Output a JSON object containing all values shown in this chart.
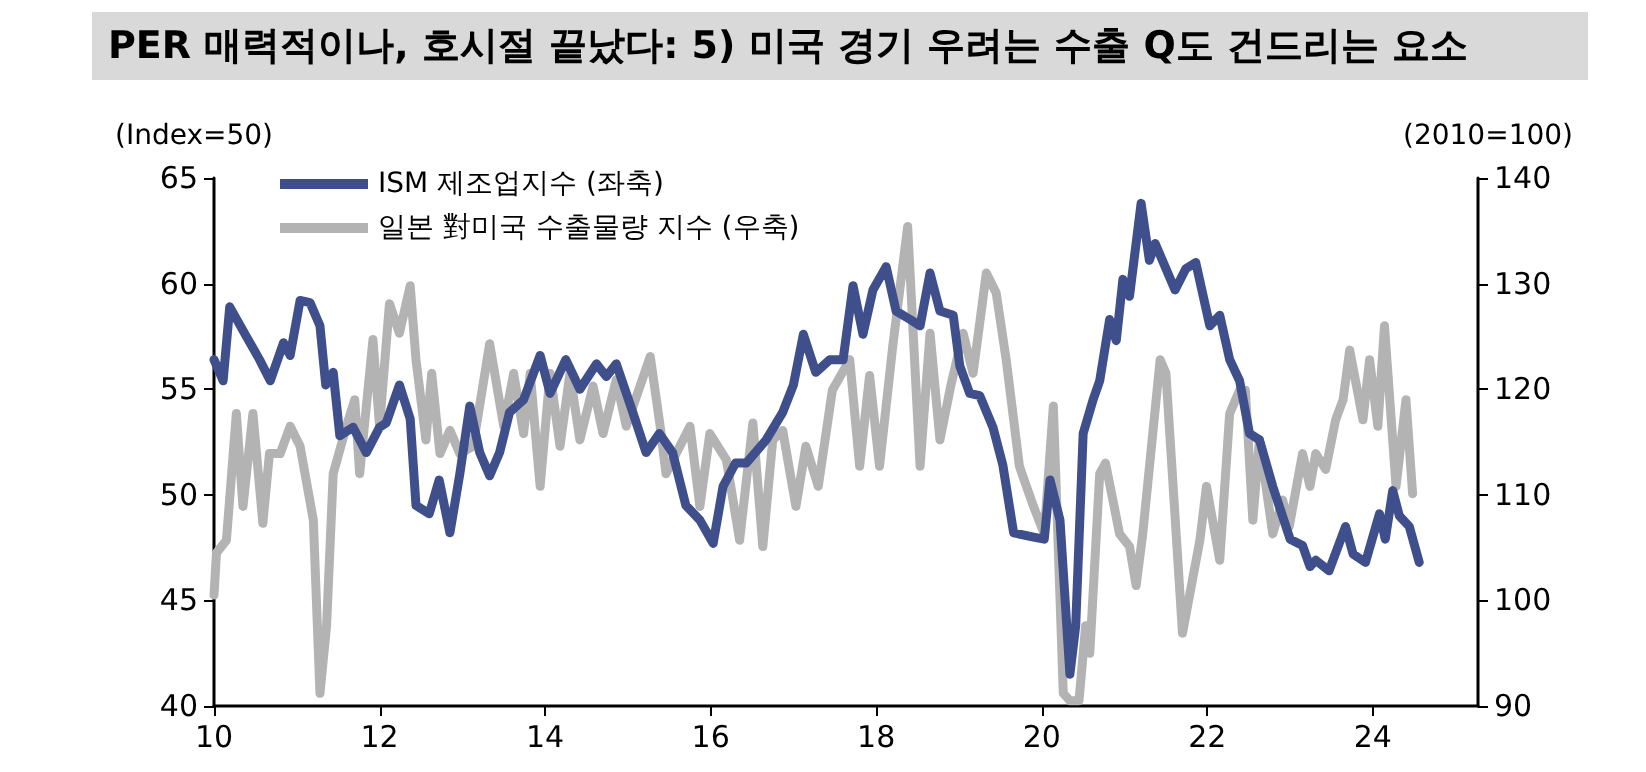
{
  "chart_data": {
    "type": "line",
    "title": "PER 매력적이나, 호시절 끝났다: 5) 미국 경기 우려는 수출 Q도 건드리는 요소",
    "ylabel": "(Index=50)",
    "y2label": "(2010=100)",
    "xlim": [
      10,
      25.27
    ],
    "xticks": [
      10,
      12,
      14,
      16,
      18,
      20,
      22,
      24
    ],
    "ylim": [
      40,
      65
    ],
    "yticks": [
      40,
      45,
      50,
      55,
      60,
      65
    ],
    "y2lim": [
      90,
      140
    ],
    "y2ticks": [
      90,
      100,
      110,
      120,
      130,
      140
    ],
    "grid": false,
    "legend": "top left",
    "marker": "none",
    "line_style": "solid",
    "series": [
      {
        "name": "ISM 제조업지수 (좌축)",
        "color": "#3f4f8c",
        "x": [
          10.0,
          10.11,
          10.19,
          10.39,
          10.55,
          10.68,
          10.84,
          10.92,
          11.04,
          11.16,
          11.28,
          11.35,
          11.44,
          11.52,
          11.68,
          11.84,
          12.0,
          12.08,
          12.24,
          12.37,
          12.44,
          12.6,
          12.72,
          12.85,
          12.97,
          13.09,
          13.21,
          13.33,
          13.45,
          13.57,
          13.74,
          13.94,
          14.06,
          14.25,
          14.42,
          14.62,
          14.74,
          14.86,
          15.06,
          15.22,
          15.38,
          15.54,
          15.7,
          15.87,
          16.03,
          16.15,
          16.3,
          16.43,
          16.67,
          16.87,
          17.0,
          17.12,
          17.27,
          17.44,
          17.6,
          17.72,
          17.84,
          17.96,
          18.12,
          18.24,
          18.41,
          18.53,
          18.65,
          18.77,
          18.93,
          19.01,
          19.13,
          19.25,
          19.41,
          19.53,
          19.66,
          19.9,
          20.03,
          20.1,
          20.22,
          20.34,
          20.41,
          20.5,
          20.62,
          20.7,
          20.82,
          20.9,
          20.98,
          21.06,
          21.2,
          21.3,
          21.37,
          21.61,
          21.74,
          21.86,
          22.03,
          22.15,
          22.27,
          22.39,
          22.51,
          22.63,
          22.79,
          23.0,
          23.15,
          23.24,
          23.31,
          23.47,
          23.67,
          23.76,
          23.91,
          24.08,
          24.15,
          24.24,
          24.32,
          24.44,
          24.56
        ],
        "values": [
          56.4,
          55.4,
          58.9,
          57.5,
          56.4,
          55.4,
          57.2,
          56.6,
          59.2,
          59.1,
          58.0,
          55.2,
          55.8,
          52.8,
          53.2,
          52.0,
          53.2,
          53.4,
          55.2,
          53.6,
          49.5,
          49.1,
          50.7,
          48.2,
          51.0,
          54.2,
          52.0,
          50.9,
          52.0,
          53.9,
          54.5,
          56.6,
          54.8,
          56.4,
          55.0,
          56.2,
          55.6,
          56.2,
          53.9,
          52.0,
          52.9,
          52.0,
          49.5,
          48.8,
          47.7,
          50.4,
          51.5,
          51.5,
          52.6,
          53.9,
          55.2,
          57.6,
          55.8,
          56.4,
          56.4,
          59.9,
          57.6,
          59.7,
          60.8,
          58.7,
          58.3,
          58.0,
          60.5,
          58.7,
          58.5,
          56.1,
          54.8,
          54.7,
          53.2,
          51.4,
          48.2,
          48.0,
          47.9,
          50.7,
          48.8,
          41.5,
          43.8,
          52.9,
          54.5,
          55.4,
          58.3,
          57.3,
          60.2,
          59.4,
          63.8,
          61.1,
          61.9,
          59.7,
          60.7,
          61.0,
          58.0,
          58.5,
          56.4,
          55.4,
          52.9,
          52.6,
          50.4,
          47.9,
          47.6,
          46.6,
          46.9,
          46.4,
          48.5,
          47.2,
          46.8,
          49.1,
          47.9,
          50.2,
          49.0,
          48.5,
          46.8
        ]
      },
      {
        "name": "일본 對미국 수출물량 지수 (우축)",
        "color": "#b3b3b3",
        "axis": "y2",
        "x": [
          10.0,
          10.03,
          10.15,
          10.27,
          10.35,
          10.47,
          10.59,
          10.67,
          10.8,
          10.92,
          11.04,
          11.2,
          11.28,
          11.36,
          11.44,
          11.6,
          11.7,
          11.76,
          11.92,
          12.0,
          12.12,
          12.24,
          12.37,
          12.44,
          12.56,
          12.63,
          12.73,
          12.85,
          12.97,
          13.13,
          13.33,
          13.5,
          13.62,
          13.74,
          13.82,
          13.94,
          14.06,
          14.18,
          14.3,
          14.42,
          14.58,
          14.7,
          14.86,
          14.98,
          15.27,
          15.39,
          15.46,
          15.75,
          15.87,
          15.99,
          16.19,
          16.35,
          16.51,
          16.63,
          16.75,
          16.87,
          17.03,
          17.15,
          17.3,
          17.47,
          17.68,
          17.8,
          17.92,
          18.04,
          18.2,
          18.38,
          18.53,
          18.65,
          18.77,
          18.9,
          19.05,
          19.17,
          19.33,
          19.45,
          19.57,
          19.73,
          19.9,
          20.03,
          20.14,
          20.26,
          20.34,
          20.45,
          20.53,
          20.58,
          20.7,
          20.77,
          20.94,
          21.06,
          21.14,
          21.22,
          21.43,
          21.5,
          21.7,
          21.91,
          21.99,
          22.15,
          22.27,
          22.39,
          22.46,
          22.55,
          22.63,
          22.79,
          22.91,
          22.99,
          23.15,
          23.24,
          23.31,
          23.43,
          23.55,
          23.64,
          23.72,
          23.88,
          23.96,
          24.06,
          24.14,
          24.28,
          24.4,
          24.48
        ],
        "values": [
          100.5,
          104.5,
          105.7,
          117.7,
          108.9,
          117.7,
          107.3,
          113.9,
          113.9,
          116.5,
          114.6,
          107.6,
          91.2,
          97.6,
          112.0,
          116.5,
          119.0,
          112.0,
          124.7,
          116.5,
          128.1,
          125.3,
          129.8,
          122.8,
          115.2,
          121.5,
          113.9,
          116.1,
          113.9,
          114.6,
          124.3,
          116.5,
          121.5,
          115.8,
          121.5,
          110.8,
          121.5,
          114.6,
          121.5,
          115.2,
          120.3,
          115.8,
          120.9,
          116.5,
          123.1,
          116.5,
          112.0,
          116.5,
          108.9,
          115.8,
          113.3,
          105.7,
          116.8,
          105.1,
          115.2,
          116.1,
          108.9,
          114.6,
          110.8,
          119.9,
          122.8,
          112.7,
          121.3,
          112.7,
          124.1,
          135.4,
          112.7,
          125.3,
          115.2,
          120.3,
          125.3,
          121.5,
          131.0,
          129.1,
          122.8,
          112.7,
          108.9,
          106.3,
          118.4,
          91.2,
          90.5,
          90.5,
          97.6,
          95.0,
          112.0,
          113.0,
          106.3,
          105.1,
          101.4,
          106.3,
          122.8,
          121.5,
          96.9,
          105.7,
          110.8,
          103.8,
          117.7,
          119.9,
          119.9,
          107.6,
          115.2,
          106.3,
          109.5,
          107.0,
          113.9,
          110.8,
          113.9,
          112.4,
          117.1,
          119.0,
          123.7,
          117.1,
          122.8,
          116.5,
          126.0,
          110.8,
          119.0,
          110.1
        ]
      }
    ]
  }
}
